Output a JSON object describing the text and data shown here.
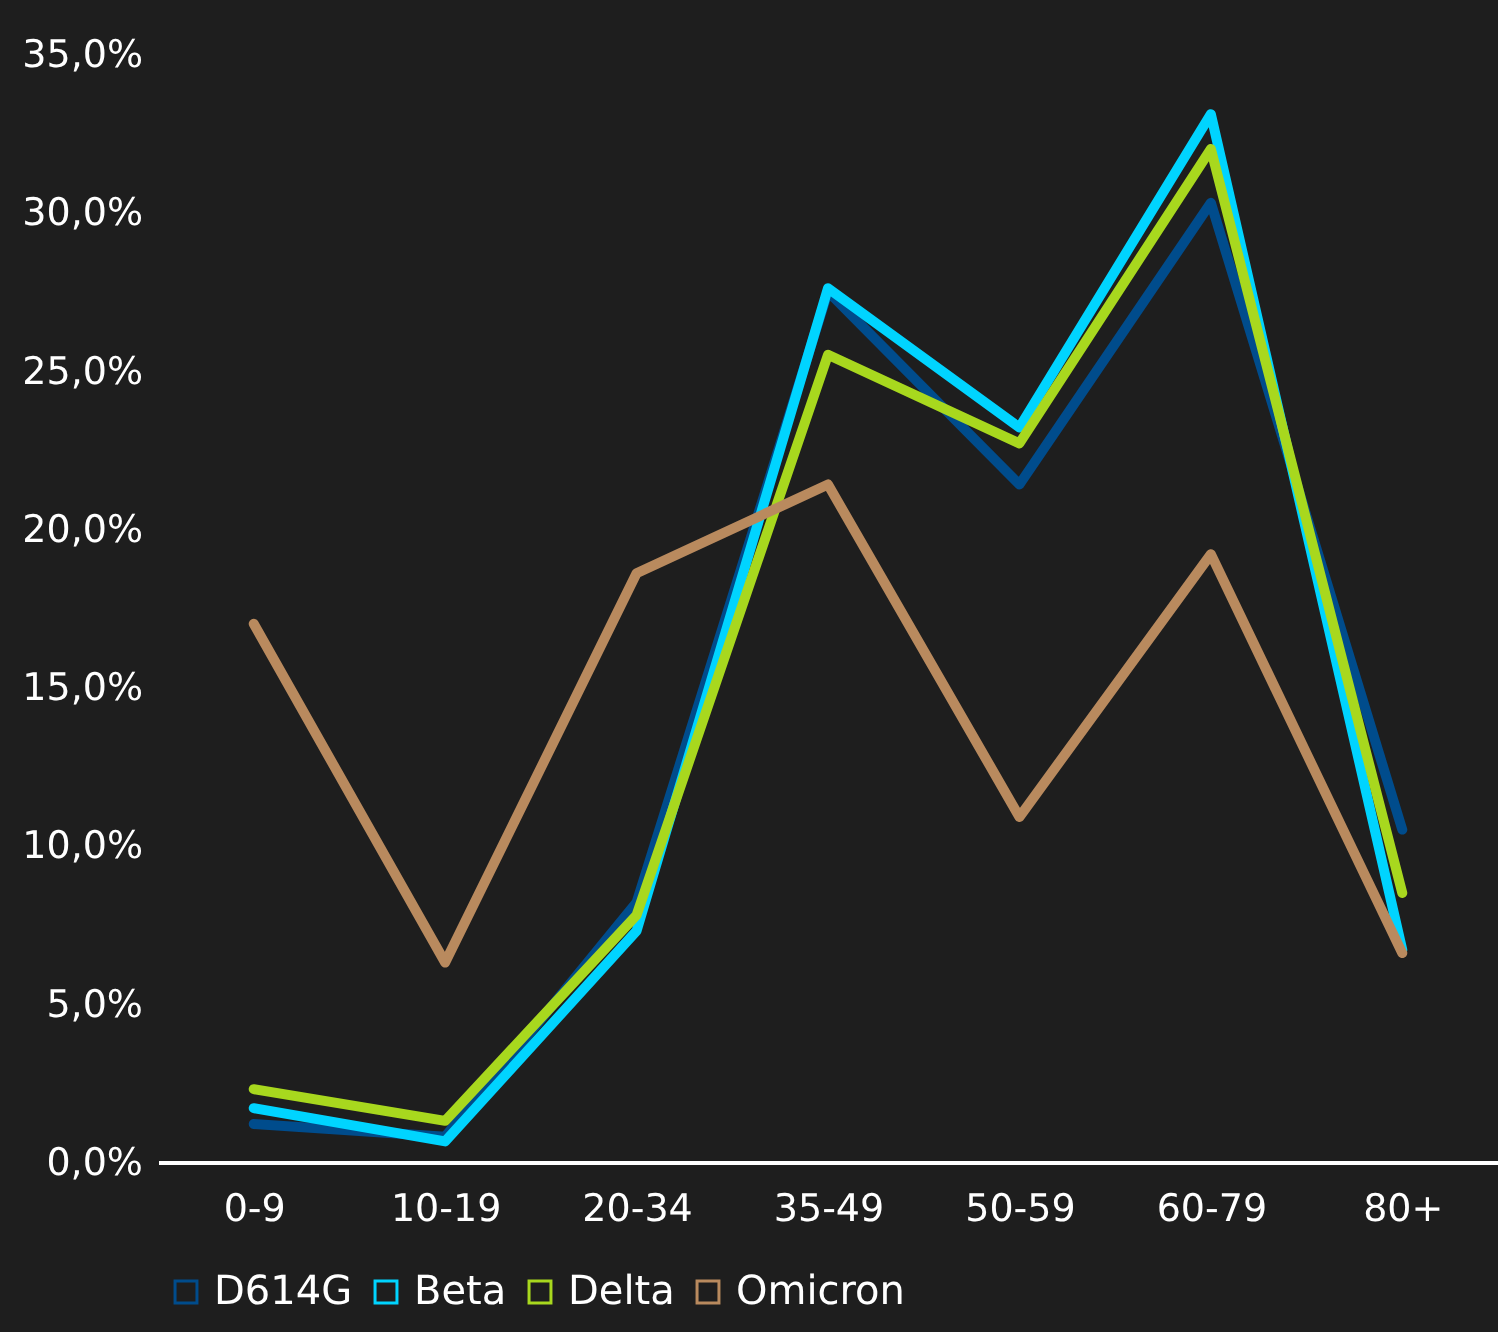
{
  "chart_data": {
    "type": "line",
    "categories": [
      "0-9",
      "10-19",
      "20-34",
      "35-49",
      "50-59",
      "60-79",
      "80+"
    ],
    "series": [
      {
        "name": "D614G",
        "color": "#004c8c",
        "values": [
          1.2,
          0.8,
          8.2,
          27.5,
          21.4,
          30.3,
          10.5
        ]
      },
      {
        "name": "Beta",
        "color": "#00d4ff",
        "values": [
          1.7,
          0.65,
          7.3,
          27.6,
          23.2,
          33.1,
          6.7
        ]
      },
      {
        "name": "Delta",
        "color": "#a8d81e",
        "values": [
          2.3,
          1.3,
          7.8,
          25.5,
          22.7,
          32.0,
          8.5
        ]
      },
      {
        "name": "Omicron",
        "color": "#b98a5e",
        "values": [
          17.0,
          6.3,
          18.6,
          21.4,
          10.9,
          19.2,
          6.6
        ]
      }
    ],
    "ylim": [
      0,
      35
    ],
    "yticks": [
      {
        "value": 0,
        "label": "0,0%"
      },
      {
        "value": 5,
        "label": "5,0%"
      },
      {
        "value": 10,
        "label": "10,0%"
      },
      {
        "value": 15,
        "label": "15,0%"
      },
      {
        "value": 20,
        "label": "20,0%"
      },
      {
        "value": 25,
        "label": "25,0%"
      },
      {
        "value": 30,
        "label": "30,0%"
      },
      {
        "value": 35,
        "label": "35,0%"
      }
    ],
    "grid": false,
    "legend": "bottom",
    "marker": "none",
    "line_style": "solid"
  }
}
